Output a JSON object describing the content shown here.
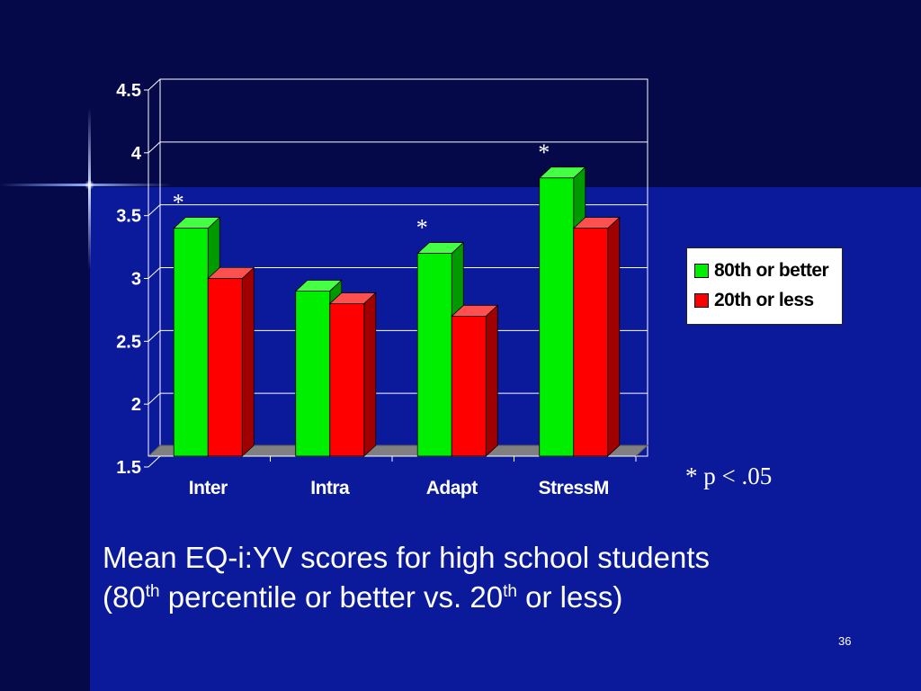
{
  "chart_data": {
    "type": "bar",
    "categories": [
      "Inter",
      "Intra",
      "Adapt",
      "StressM"
    ],
    "series": [
      {
        "name": "80th or better",
        "values": [
          3.4,
          2.9,
          3.2,
          3.8
        ],
        "color": "#00ee00"
      },
      {
        "name": "20th or less",
        "values": [
          3.0,
          2.8,
          2.7,
          3.4
        ],
        "color": "#ff0000"
      }
    ],
    "ylim": [
      1.5,
      4.5
    ],
    "yticks": [
      "1.5",
      "2",
      "2.5",
      "3",
      "3.5",
      "4",
      "4.5"
    ],
    "grid": true,
    "legend_position": "right",
    "annotations": [
      "*",
      "*",
      "*"
    ],
    "significant_categories": [
      "Inter",
      "Adapt",
      "StressM"
    ],
    "footnote": "* p < .05"
  },
  "caption": {
    "line1": "Mean EQ-i:YV scores for high school students",
    "open": "(80",
    "sup1": "th",
    "mid": " percentile or better vs. 20",
    "sup2": "th",
    "end": " or less)"
  },
  "page_number": "36"
}
